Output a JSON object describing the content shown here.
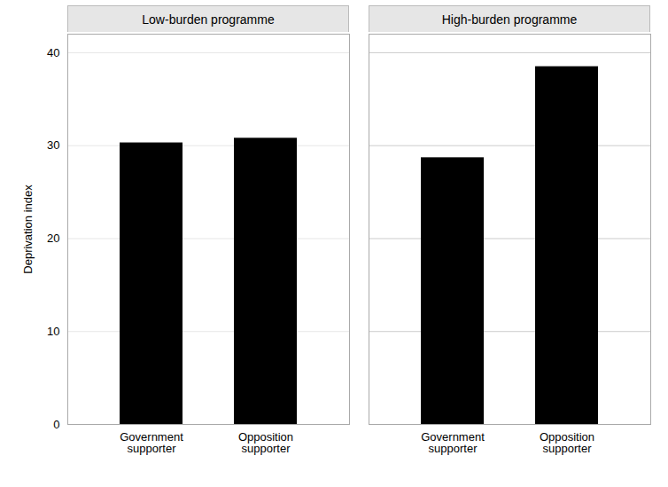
{
  "chart_data": [
    {
      "type": "bar",
      "title": "Low-burden programme",
      "categories": [
        "Government\nsupporter",
        "Opposition\nsupporter"
      ],
      "values": [
        30.3,
        30.8
      ],
      "ylabel": "Deprivation index",
      "ylim": [
        0,
        42
      ],
      "yticks": [
        0,
        10,
        20,
        30,
        40
      ],
      "grid": true
    },
    {
      "type": "bar",
      "title": "High-burden programme",
      "categories": [
        "Government\nsupporter",
        "Opposition\nsupporter"
      ],
      "values": [
        28.7,
        38.5
      ],
      "ylim": [
        0,
        42
      ],
      "yticks": [
        0,
        10,
        20,
        30,
        40
      ],
      "grid": true,
      "tick_labels": "x"
    }
  ]
}
